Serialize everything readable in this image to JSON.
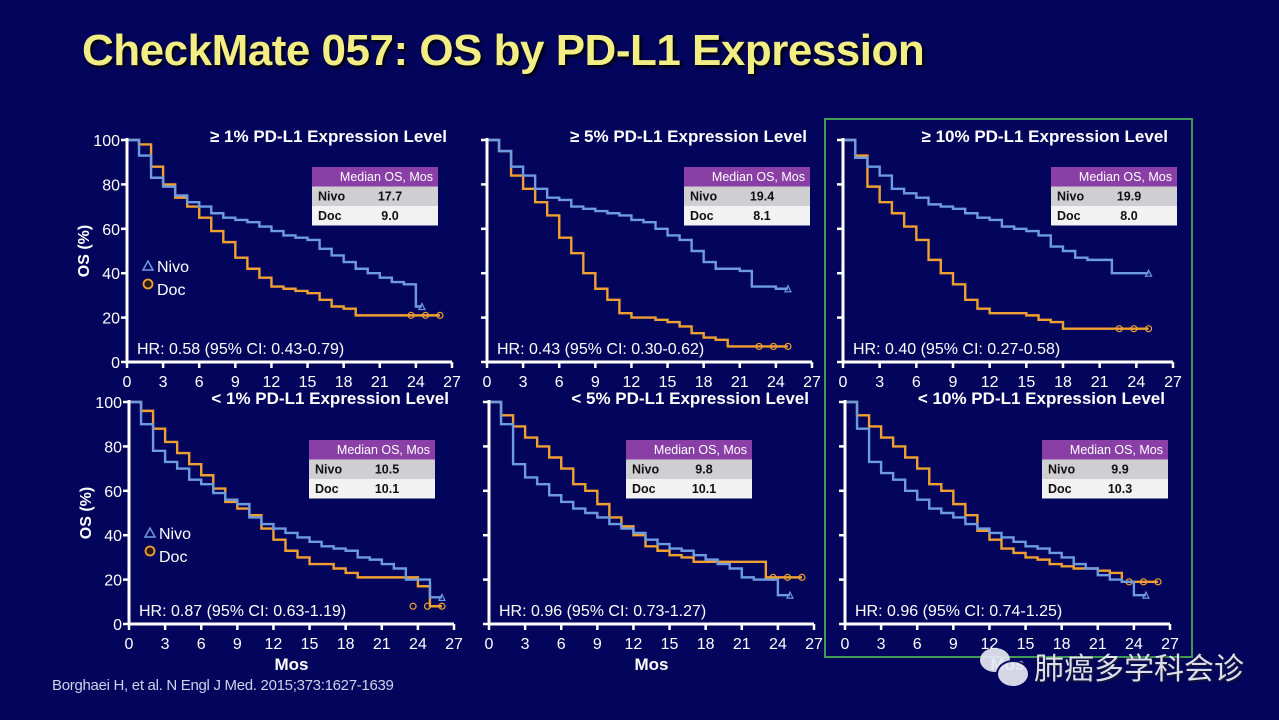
{
  "slide": {
    "title": "CheckMate 057: OS by PD-L1 Expression",
    "citation": "Borghaei H, et al. N Engl J Med. 2015;373:1627-1639",
    "watermark": "肺癌多学科会诊",
    "highlight_color": "#3f9a55"
  },
  "colors": {
    "background": "#03045c",
    "title": "#f3ee84",
    "nivo": "#6d9be0",
    "doc": "#f0a030",
    "table_header": "#8a3fa6",
    "table_row1": "#cfcfd2",
    "table_row2": "#f2f2f2"
  },
  "chart_data": [
    {
      "type": "line",
      "title": "≥ 1% PD-L1 Expression Level",
      "xlabel": "",
      "ylabel": "OS (%)",
      "xlim": [
        0,
        27
      ],
      "ylim": [
        0,
        100
      ],
      "xticks": [
        "0",
        "3",
        "6",
        "9",
        "12",
        "15",
        "18",
        "21",
        "24",
        "27"
      ],
      "yticks": [
        "0",
        "20",
        "40",
        "60",
        "80",
        "100"
      ],
      "show_ylabels": true,
      "legend": {
        "position": "middle-left",
        "entries": [
          "Nivo",
          "Doc"
        ]
      },
      "median_table": {
        "header": "Median OS, Mos",
        "rows": [
          {
            "arm": "Nivo",
            "value": "17.7"
          },
          {
            "arm": "Doc",
            "value": "9.0"
          }
        ]
      },
      "annotation": "HR: 0.58 (95% CI: 0.43-0.79)",
      "series": [
        {
          "name": "Nivo",
          "x": [
            0,
            1,
            2,
            3,
            4,
            5,
            6,
            7,
            8,
            9,
            10,
            11,
            12,
            13,
            14,
            15,
            16,
            17,
            18,
            19,
            20,
            21,
            22,
            23,
            24,
            24.5
          ],
          "y": [
            100,
            93,
            83,
            79,
            75,
            72,
            70,
            67,
            65,
            64,
            63,
            61,
            59,
            57,
            56,
            55,
            51,
            48,
            45,
            42,
            40,
            38,
            36,
            35,
            25,
            25
          ]
        },
        {
          "name": "Doc",
          "x": [
            0,
            1,
            2,
            3,
            4,
            5,
            6,
            7,
            8,
            9,
            10,
            11,
            12,
            13,
            14,
            15,
            16,
            17,
            18,
            19,
            20,
            21,
            22,
            23,
            24,
            25,
            26
          ],
          "y": [
            100,
            98,
            88,
            80,
            74,
            70,
            65,
            59,
            54,
            47,
            42,
            38,
            34,
            33,
            32,
            31,
            28,
            25,
            24,
            21,
            21,
            21,
            21,
            21,
            21,
            21,
            21
          ]
        }
      ]
    },
    {
      "type": "line",
      "title": "≥ 5% PD-L1 Expression Level",
      "xlabel": "",
      "ylabel": "OS (%)",
      "xlim": [
        0,
        27
      ],
      "ylim": [
        0,
        100
      ],
      "xticks": [
        "0",
        "3",
        "6",
        "9",
        "12",
        "15",
        "18",
        "21",
        "24",
        "27"
      ],
      "yticks": [
        "0",
        "20",
        "40",
        "60",
        "80",
        "100"
      ],
      "show_ylabels": false,
      "median_table": {
        "header": "Median OS, Mos",
        "rows": [
          {
            "arm": "Nivo",
            "value": "19.4"
          },
          {
            "arm": "Doc",
            "value": "8.1"
          }
        ]
      },
      "annotation": "HR: 0.43 (95% CI: 0.30-0.62)",
      "series": [
        {
          "name": "Nivo",
          "x": [
            0,
            1,
            2,
            3,
            4,
            5,
            6,
            7,
            8,
            9,
            10,
            11,
            12,
            13,
            14,
            15,
            16,
            17,
            18,
            19,
            20,
            21,
            22,
            23,
            24,
            25
          ],
          "y": [
            100,
            95,
            88,
            84,
            78,
            74,
            73,
            70,
            69,
            68,
            67,
            66,
            64,
            63,
            60,
            57,
            55,
            50,
            45,
            42,
            42,
            41,
            34,
            34,
            33,
            33
          ]
        },
        {
          "name": "Doc",
          "x": [
            0,
            1,
            2,
            3,
            4,
            5,
            6,
            7,
            8,
            9,
            10,
            11,
            12,
            13,
            14,
            15,
            16,
            17,
            18,
            19,
            20,
            21,
            22,
            23,
            24,
            25
          ],
          "y": [
            100,
            95,
            84,
            78,
            72,
            66,
            56,
            49,
            40,
            33,
            28,
            22,
            20,
            20,
            19,
            18,
            16,
            13,
            11,
            10,
            7,
            7,
            7,
            7,
            7,
            7
          ]
        }
      ]
    },
    {
      "type": "line",
      "title": "≥ 10% PD-L1 Expression Level",
      "xlabel": "",
      "ylabel": "OS (%)",
      "xlim": [
        0,
        27
      ],
      "ylim": [
        0,
        100
      ],
      "xticks": [
        "0",
        "3",
        "6",
        "9",
        "12",
        "15",
        "18",
        "21",
        "24",
        "27"
      ],
      "yticks": [
        "0",
        "20",
        "40",
        "60",
        "80",
        "100"
      ],
      "show_ylabels": false,
      "median_table": {
        "header": "Median OS, Mos",
        "rows": [
          {
            "arm": "Nivo",
            "value": "19.9"
          },
          {
            "arm": "Doc",
            "value": "8.0"
          }
        ]
      },
      "annotation": "HR: 0.40 (95% CI: 0.27-0.58)",
      "series": [
        {
          "name": "Nivo",
          "x": [
            0,
            1,
            2,
            3,
            4,
            5,
            6,
            7,
            8,
            9,
            10,
            11,
            12,
            13,
            14,
            15,
            16,
            17,
            18,
            19,
            20,
            21,
            22,
            23,
            24,
            25
          ],
          "y": [
            100,
            92,
            88,
            84,
            78,
            76,
            74,
            71,
            70,
            69,
            67,
            65,
            64,
            61,
            60,
            59,
            57,
            52,
            50,
            47,
            46,
            46,
            40,
            40,
            40,
            40
          ]
        },
        {
          "name": "Doc",
          "x": [
            0,
            1,
            2,
            3,
            4,
            5,
            6,
            7,
            8,
            9,
            10,
            11,
            12,
            13,
            14,
            15,
            16,
            17,
            18,
            19,
            20,
            21,
            22,
            23,
            24,
            25
          ],
          "y": [
            100,
            93,
            79,
            72,
            67,
            61,
            55,
            46,
            40,
            35,
            28,
            24,
            22,
            22,
            22,
            21,
            19,
            18,
            15,
            15,
            15,
            15,
            15,
            15,
            15,
            15
          ]
        }
      ]
    },
    {
      "type": "line",
      "title": "< 1% PD-L1 Expression Level",
      "xlabel": "Mos",
      "ylabel": "OS (%)",
      "xlim": [
        0,
        27
      ],
      "ylim": [
        0,
        100
      ],
      "xticks": [
        "0",
        "3",
        "6",
        "9",
        "12",
        "15",
        "18",
        "21",
        "24",
        "27"
      ],
      "yticks": [
        "0",
        "20",
        "40",
        "60",
        "80",
        "100"
      ],
      "show_ylabels": true,
      "legend": {
        "position": "middle-left",
        "entries": [
          "Nivo",
          "Doc"
        ]
      },
      "median_table": {
        "header": "Median OS, Mos",
        "rows": [
          {
            "arm": "Nivo",
            "value": "10.5"
          },
          {
            "arm": "Doc",
            "value": "10.1"
          }
        ]
      },
      "annotation": "HR: 0.87 (95% CI: 0.63-1.19)",
      "series": [
        {
          "name": "Nivo",
          "x": [
            0,
            1,
            2,
            3,
            4,
            5,
            6,
            7,
            8,
            9,
            10,
            11,
            12,
            13,
            14,
            15,
            16,
            17,
            18,
            19,
            20,
            21,
            22,
            23,
            24,
            25,
            26
          ],
          "y": [
            100,
            90,
            78,
            73,
            70,
            65,
            63,
            59,
            56,
            54,
            48,
            45,
            43,
            41,
            39,
            37,
            35,
            34,
            33,
            30,
            29,
            27,
            25,
            20,
            20,
            12,
            12
          ]
        },
        {
          "name": "Doc",
          "x": [
            0,
            1,
            2,
            3,
            4,
            5,
            6,
            7,
            8,
            9,
            10,
            11,
            12,
            13,
            14,
            15,
            16,
            17,
            18,
            19,
            20,
            21,
            22,
            23,
            24,
            25,
            26
          ],
          "y": [
            100,
            96,
            88,
            82,
            77,
            72,
            67,
            61,
            55,
            52,
            49,
            43,
            38,
            33,
            30,
            27,
            27,
            25,
            23,
            21,
            21,
            21,
            21,
            21,
            17,
            8,
            8
          ]
        }
      ]
    },
    {
      "type": "line",
      "title": "< 5% PD-L1 Expression Level",
      "xlabel": "Mos",
      "ylabel": "OS (%)",
      "xlim": [
        0,
        27
      ],
      "ylim": [
        0,
        100
      ],
      "xticks": [
        "0",
        "3",
        "6",
        "9",
        "12",
        "15",
        "18",
        "21",
        "24",
        "27"
      ],
      "yticks": [
        "0",
        "20",
        "40",
        "60",
        "80",
        "100"
      ],
      "show_ylabels": false,
      "median_table": {
        "header": "Median OS, Mos",
        "rows": [
          {
            "arm": "Nivo",
            "value": "9.8"
          },
          {
            "arm": "Doc",
            "value": "10.1"
          }
        ]
      },
      "annotation": "HR: 0.96 (95% CI: 0.73-1.27)",
      "series": [
        {
          "name": "Nivo",
          "x": [
            0,
            1,
            2,
            3,
            4,
            5,
            6,
            7,
            8,
            9,
            10,
            11,
            12,
            13,
            14,
            15,
            16,
            17,
            18,
            19,
            20,
            21,
            22,
            23,
            24,
            25
          ],
          "y": [
            100,
            90,
            72,
            66,
            63,
            58,
            55,
            52,
            50,
            48,
            45,
            43,
            41,
            38,
            36,
            34,
            33,
            31,
            29,
            27,
            25,
            21,
            20,
            20,
            13,
            13
          ]
        },
        {
          "name": "Doc",
          "x": [
            0,
            1,
            2,
            3,
            4,
            5,
            6,
            7,
            8,
            9,
            10,
            11,
            12,
            13,
            14,
            15,
            16,
            17,
            18,
            19,
            20,
            21,
            22,
            23,
            24,
            25,
            26
          ],
          "y": [
            100,
            94,
            89,
            84,
            80,
            75,
            70,
            63,
            60,
            54,
            48,
            44,
            40,
            35,
            33,
            31,
            30,
            28,
            28,
            28,
            28,
            28,
            28,
            21,
            21,
            21,
            21
          ]
        }
      ]
    },
    {
      "type": "line",
      "title": "< 10% PD-L1 Expression Level",
      "xlabel": "Mos",
      "ylabel": "OS (%)",
      "xlim": [
        0,
        27
      ],
      "ylim": [
        0,
        100
      ],
      "xticks": [
        "0",
        "3",
        "6",
        "9",
        "12",
        "15",
        "18",
        "21",
        "24",
        "27"
      ],
      "yticks": [
        "0",
        "20",
        "40",
        "60",
        "80",
        "100"
      ],
      "show_ylabels": false,
      "median_table": {
        "header": "Median OS, Mos",
        "rows": [
          {
            "arm": "Nivo",
            "value": "9.9"
          },
          {
            "arm": "Doc",
            "value": "10.3"
          }
        ]
      },
      "annotation": "HR: 0.96 (95% CI: 0.74-1.25)",
      "series": [
        {
          "name": "Nivo",
          "x": [
            0,
            1,
            2,
            3,
            4,
            5,
            6,
            7,
            8,
            9,
            10,
            11,
            12,
            13,
            14,
            15,
            16,
            17,
            18,
            19,
            20,
            21,
            22,
            23,
            24,
            25
          ],
          "y": [
            100,
            88,
            73,
            68,
            65,
            60,
            56,
            52,
            50,
            48,
            45,
            43,
            41,
            39,
            37,
            35,
            34,
            32,
            30,
            27,
            25,
            22,
            20,
            19,
            13,
            13
          ]
        },
        {
          "name": "Doc",
          "x": [
            0,
            1,
            2,
            3,
            4,
            5,
            6,
            7,
            8,
            9,
            10,
            11,
            12,
            13,
            14,
            15,
            16,
            17,
            18,
            19,
            20,
            21,
            22,
            23,
            24,
            25,
            26
          ],
          "y": [
            100,
            94,
            89,
            84,
            80,
            75,
            70,
            63,
            60,
            54,
            49,
            42,
            38,
            34,
            32,
            30,
            29,
            27,
            26,
            25,
            25,
            24,
            23,
            19,
            19,
            19,
            19
          ]
        }
      ]
    }
  ]
}
